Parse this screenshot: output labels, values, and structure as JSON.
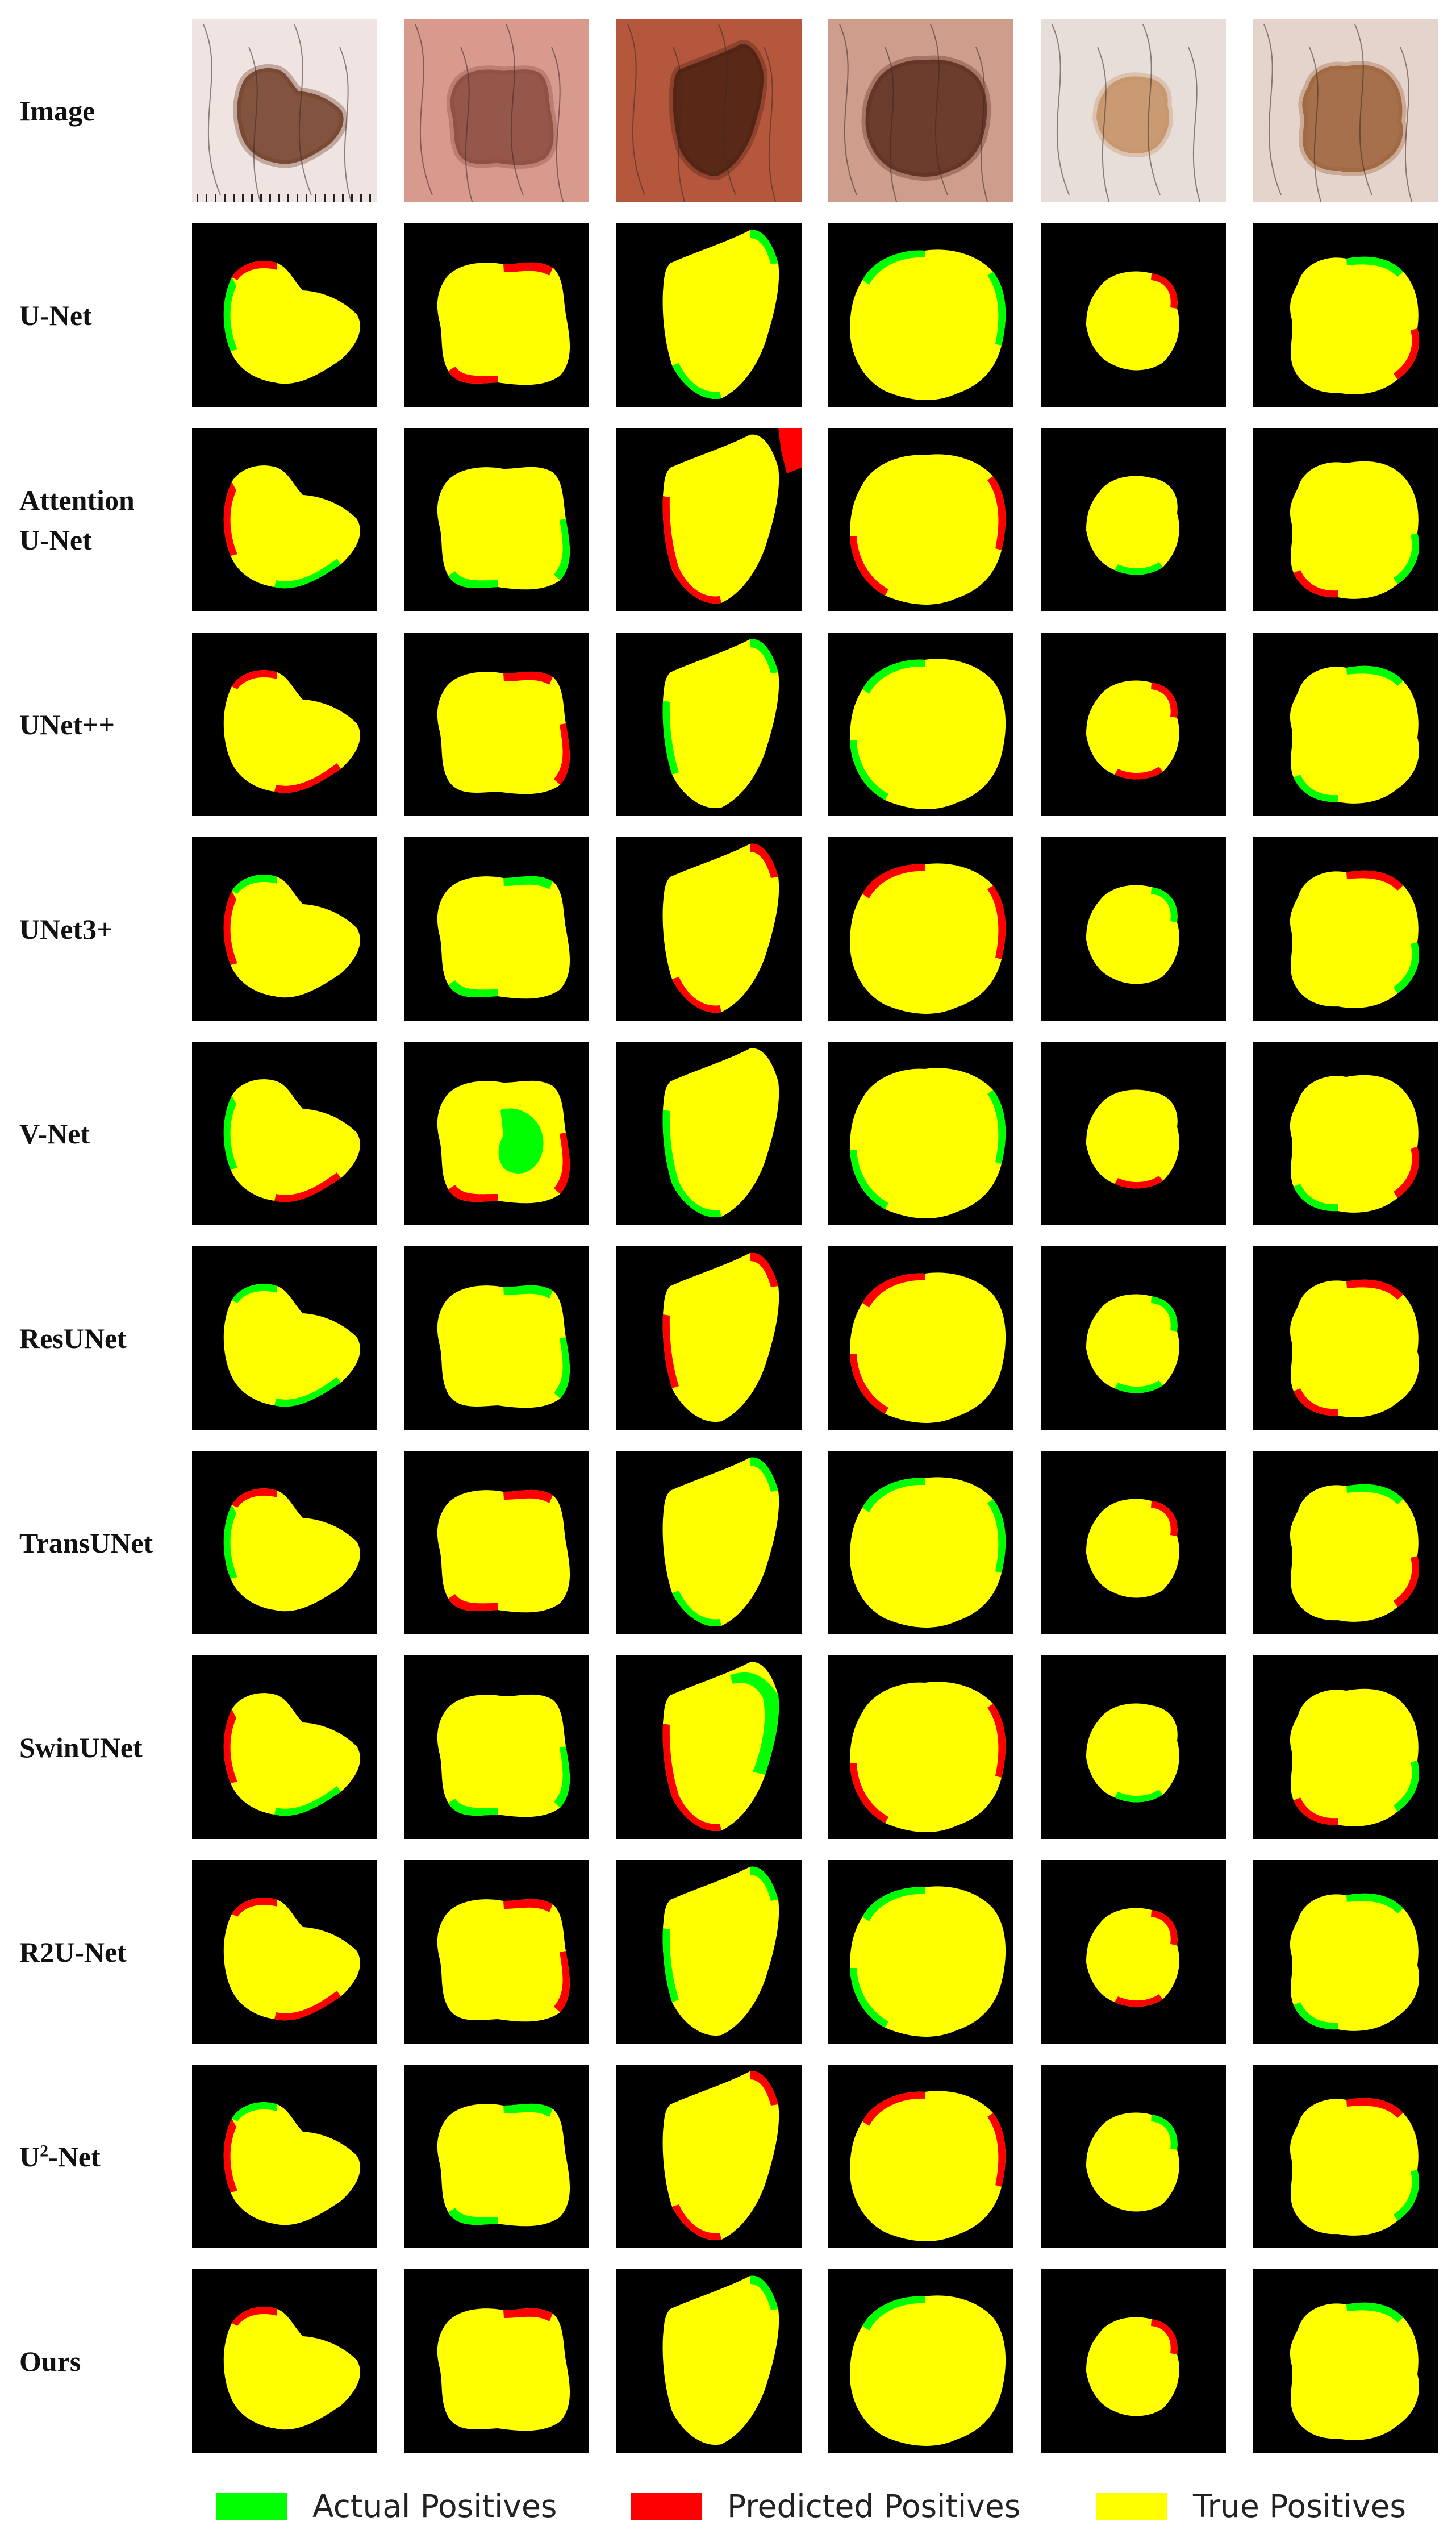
{
  "rows": [
    {
      "label": "Image",
      "label_sup": "",
      "label_rest": ""
    },
    {
      "label": "U-Net",
      "label_sup": "",
      "label_rest": ""
    },
    {
      "label": "Attention U-Net",
      "label_sup": "",
      "label_rest": ""
    },
    {
      "label": "UNet++",
      "label_sup": "",
      "label_rest": ""
    },
    {
      "label": "UNet3+",
      "label_sup": "",
      "label_rest": ""
    },
    {
      "label": "V-Net",
      "label_sup": "",
      "label_rest": ""
    },
    {
      "label": "ResUNet",
      "label_sup": "",
      "label_rest": ""
    },
    {
      "label": "TransUNet",
      "label_sup": "",
      "label_rest": ""
    },
    {
      "label": "SwinUNet",
      "label_sup": "",
      "label_rest": ""
    },
    {
      "label": "R2U-Net",
      "label_sup": "",
      "label_rest": ""
    },
    {
      "label": "U",
      "label_sup": "2",
      "label_rest": "-Net"
    },
    {
      "label": "Ours",
      "label_sup": "",
      "label_rest": ""
    }
  ],
  "columns": 6,
  "legend": [
    {
      "label": "Actual Positives",
      "color": "#00ff00"
    },
    {
      "label": "Predicted Positives",
      "color": "#ff0000"
    },
    {
      "label": "True Positives",
      "color": "#ffff00"
    }
  ],
  "colors": {
    "background": "#000000",
    "true_positive": "#ffff00",
    "actual_positive": "#00ff00",
    "predicted_positive": "#ff0000"
  }
}
